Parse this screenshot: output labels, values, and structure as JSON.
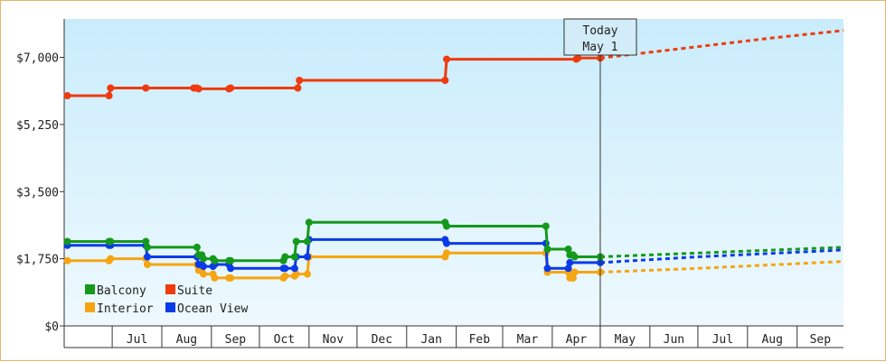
{
  "chart_data": {
    "type": "line",
    "title": "",
    "xlabel": "",
    "ylabel": "",
    "ylim": [
      0,
      8000
    ],
    "y_ticks": [
      "$0",
      "$1,750",
      "$3,500",
      "$5,250",
      "$7,000"
    ],
    "y_tick_values": [
      0,
      1750,
      3500,
      5250,
      7000
    ],
    "x_range": [
      "2023-06-01",
      "2024-09-30"
    ],
    "month_ticks": [
      {
        "label": "Jul",
        "date": "2023-07-01"
      },
      {
        "label": "Aug",
        "date": "2023-08-01"
      },
      {
        "label": "Sep",
        "date": "2023-09-01"
      },
      {
        "label": "Oct",
        "date": "2023-10-01"
      },
      {
        "label": "Nov",
        "date": "2023-11-01"
      },
      {
        "label": "Dec",
        "date": "2023-12-01"
      },
      {
        "label": "Jan",
        "date": "2024-01-01"
      },
      {
        "label": "Feb",
        "date": "2024-02-01"
      },
      {
        "label": "Mar",
        "date": "2024-03-01"
      },
      {
        "label": "Apr",
        "date": "2024-04-01"
      },
      {
        "label": "May",
        "date": "2024-05-01"
      },
      {
        "label": "Jun",
        "date": "2024-06-01"
      },
      {
        "label": "Jul",
        "date": "2024-07-01"
      },
      {
        "label": "Aug",
        "date": "2024-08-01"
      },
      {
        "label": "Sep",
        "date": "2024-09-01"
      }
    ],
    "today": {
      "line1": "Today",
      "line2": "May 1",
      "date": "2024-05-01"
    },
    "legend_position": "bottom-left",
    "grid": false,
    "series": [
      {
        "name": "Suite",
        "color": "#ee3b0f",
        "points": [
          [
            "2023-06-03",
            6000
          ],
          [
            "2023-06-29",
            6000
          ],
          [
            "2023-06-30",
            6200
          ],
          [
            "2023-07-22",
            6200
          ],
          [
            "2023-08-21",
            6200
          ],
          [
            "2023-08-23",
            6200
          ],
          [
            "2023-08-24",
            6180
          ],
          [
            "2023-09-12",
            6180
          ],
          [
            "2023-09-13",
            6200
          ],
          [
            "2023-10-25",
            6200
          ],
          [
            "2023-10-26",
            6400
          ],
          [
            "2024-01-25",
            6400
          ],
          [
            "2024-01-26",
            6950
          ],
          [
            "2024-04-16",
            6950
          ],
          [
            "2024-04-17",
            6980
          ],
          [
            "2024-05-01",
            6980
          ]
        ],
        "forecast": [
          [
            "2024-05-01",
            6980
          ],
          [
            "2024-06-15",
            7200
          ],
          [
            "2024-08-15",
            7500
          ],
          [
            "2024-09-30",
            7700
          ]
        ]
      },
      {
        "name": "Balcony",
        "color": "#14991c",
        "points": [
          [
            "2023-06-03",
            2200
          ],
          [
            "2023-06-29",
            2200
          ],
          [
            "2023-06-30",
            2200
          ],
          [
            "2023-07-22",
            2200
          ],
          [
            "2023-07-23",
            2050
          ],
          [
            "2023-08-23",
            2050
          ],
          [
            "2023-08-24",
            1850
          ],
          [
            "2023-08-26",
            1850
          ],
          [
            "2023-08-27",
            1750
          ],
          [
            "2023-09-02",
            1750
          ],
          [
            "2023-09-03",
            1700
          ],
          [
            "2023-09-12",
            1700
          ],
          [
            "2023-09-13",
            1700
          ],
          [
            "2023-10-16",
            1700
          ],
          [
            "2023-10-17",
            1800
          ],
          [
            "2023-10-23",
            1800
          ],
          [
            "2023-10-24",
            2200
          ],
          [
            "2023-10-31",
            2200
          ],
          [
            "2023-11-01",
            2700
          ],
          [
            "2024-01-25",
            2700
          ],
          [
            "2024-01-26",
            2600
          ],
          [
            "2024-03-28",
            2600
          ],
          [
            "2024-03-29",
            2000
          ],
          [
            "2024-04-11",
            2000
          ],
          [
            "2024-04-12",
            1850
          ],
          [
            "2024-04-14",
            1850
          ],
          [
            "2024-04-15",
            1800
          ],
          [
            "2024-05-01",
            1800
          ]
        ],
        "forecast": [
          [
            "2024-05-01",
            1800
          ],
          [
            "2024-07-01",
            1900
          ],
          [
            "2024-09-30",
            2050
          ]
        ]
      },
      {
        "name": "Ocean View",
        "color": "#0b3be8",
        "points": [
          [
            "2023-06-03",
            2100
          ],
          [
            "2023-06-29",
            2100
          ],
          [
            "2023-06-30",
            2100
          ],
          [
            "2023-07-22",
            2100
          ],
          [
            "2023-07-23",
            1800
          ],
          [
            "2023-08-23",
            1800
          ],
          [
            "2023-08-24",
            1600
          ],
          [
            "2023-08-26",
            1600
          ],
          [
            "2023-08-27",
            1550
          ],
          [
            "2023-09-02",
            1550
          ],
          [
            "2023-09-03",
            1600
          ],
          [
            "2023-09-12",
            1600
          ],
          [
            "2023-09-13",
            1500
          ],
          [
            "2023-10-16",
            1500
          ],
          [
            "2023-10-17",
            1500
          ],
          [
            "2023-10-23",
            1500
          ],
          [
            "2023-10-24",
            1800
          ],
          [
            "2023-10-31",
            1800
          ],
          [
            "2023-11-01",
            2250
          ],
          [
            "2024-01-25",
            2250
          ],
          [
            "2024-01-26",
            2150
          ],
          [
            "2024-03-28",
            2150
          ],
          [
            "2024-03-29",
            1500
          ],
          [
            "2024-04-11",
            1500
          ],
          [
            "2024-04-12",
            1650
          ],
          [
            "2024-05-01",
            1650
          ]
        ],
        "forecast": [
          [
            "2024-05-01",
            1650
          ],
          [
            "2024-07-01",
            1800
          ],
          [
            "2024-09-30",
            1980
          ]
        ]
      },
      {
        "name": "Interior",
        "color": "#f5a511",
        "points": [
          [
            "2023-06-03",
            1700
          ],
          [
            "2023-06-29",
            1700
          ],
          [
            "2023-06-30",
            1750
          ],
          [
            "2023-07-22",
            1750
          ],
          [
            "2023-07-23",
            1600
          ],
          [
            "2023-08-23",
            1600
          ],
          [
            "2023-08-24",
            1450
          ],
          [
            "2023-08-26",
            1450
          ],
          [
            "2023-08-27",
            1350
          ],
          [
            "2023-09-02",
            1350
          ],
          [
            "2023-09-03",
            1250
          ],
          [
            "2023-09-12",
            1250
          ],
          [
            "2023-09-13",
            1250
          ],
          [
            "2023-10-16",
            1250
          ],
          [
            "2023-10-17",
            1300
          ],
          [
            "2023-10-23",
            1300
          ],
          [
            "2023-10-24",
            1350
          ],
          [
            "2023-10-31",
            1350
          ],
          [
            "2023-11-01",
            1800
          ],
          [
            "2024-01-25",
            1800
          ],
          [
            "2024-01-26",
            1900
          ],
          [
            "2024-03-28",
            1900
          ],
          [
            "2024-03-29",
            1400
          ],
          [
            "2024-04-11",
            1400
          ],
          [
            "2024-04-12",
            1250
          ],
          [
            "2024-04-14",
            1250
          ],
          [
            "2024-04-15",
            1400
          ],
          [
            "2024-05-01",
            1400
          ]
        ],
        "forecast": [
          [
            "2024-05-01",
            1400
          ],
          [
            "2024-07-01",
            1500
          ],
          [
            "2024-09-30",
            1680
          ]
        ]
      }
    ],
    "legend": [
      {
        "name": "Balcony",
        "color": "#14991c"
      },
      {
        "name": "Suite",
        "color": "#ee3b0f"
      },
      {
        "name": "Interior",
        "color": "#f5a511"
      },
      {
        "name": "Ocean View",
        "color": "#0b3be8"
      }
    ]
  }
}
